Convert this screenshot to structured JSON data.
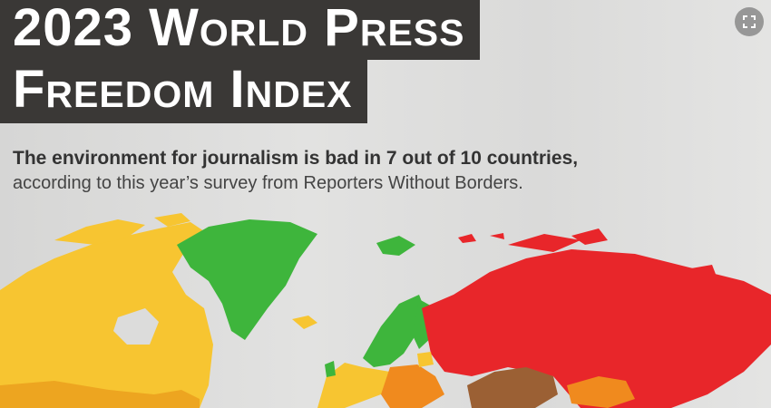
{
  "header": {
    "title_lines": [
      "2023 World Press",
      "Freedom Index"
    ],
    "subtitle_bold": "The environment for journalism is bad in 7 out of 10 countries,",
    "subtitle_rest": "according to this year’s survey from Reporters Without Borders."
  }
}
